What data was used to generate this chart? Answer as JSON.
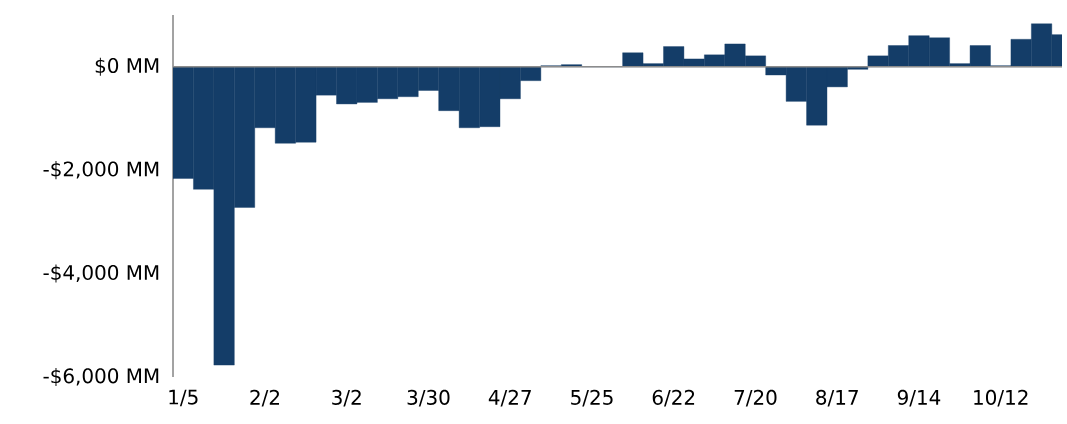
{
  "chart_data": {
    "type": "bar",
    "categories": [
      "1/5",
      null,
      null,
      null,
      "2/2",
      null,
      null,
      null,
      "3/2",
      null,
      null,
      null,
      "3/30",
      null,
      null,
      null,
      "4/27",
      null,
      null,
      null,
      "5/25",
      null,
      null,
      null,
      "6/22",
      null,
      null,
      null,
      "7/20",
      null,
      null,
      null,
      "8/17",
      null,
      null,
      null,
      "9/14",
      null,
      null,
      null,
      "10/12",
      null,
      null,
      null
    ],
    "values": [
      -2160,
      -2370,
      -5770,
      -2720,
      -1180,
      -1480,
      -1460,
      -550,
      -720,
      -690,
      -620,
      -580,
      -460,
      -850,
      -1180,
      -1160,
      -620,
      -270,
      20,
      40,
      0,
      0,
      270,
      60,
      390,
      150,
      230,
      440,
      210,
      -160,
      -670,
      -1130,
      -390,
      -50,
      210,
      410,
      600,
      560,
      60,
      410,
      20,
      530,
      830,
      620
    ],
    "color": "#143d68",
    "ylim": [
      -6000,
      1000
    ],
    "yticks": [
      {
        "value": -6000,
        "label": "-$6,000 MM"
      },
      {
        "value": -4000,
        "label": "-$4,000 MM"
      },
      {
        "value": -2000,
        "label": "-$2,000 MM"
      },
      {
        "value": 0,
        "label": "$0 MM"
      }
    ]
  }
}
